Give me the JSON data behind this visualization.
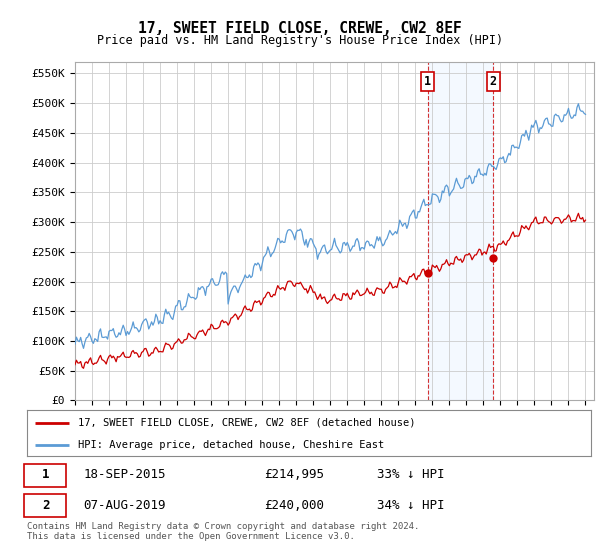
{
  "title": "17, SWEET FIELD CLOSE, CREWE, CW2 8EF",
  "subtitle": "Price paid vs. HM Land Registry's House Price Index (HPI)",
  "ylabel_ticks": [
    "£0",
    "£50K",
    "£100K",
    "£150K",
    "£200K",
    "£250K",
    "£300K",
    "£350K",
    "£400K",
    "£450K",
    "£500K",
    "£550K"
  ],
  "ytick_values": [
    0,
    50000,
    100000,
    150000,
    200000,
    250000,
    300000,
    350000,
    400000,
    450000,
    500000,
    550000
  ],
  "ylim": [
    0,
    570000
  ],
  "xlim_start": 1995.0,
  "xlim_end": 2025.5,
  "hpi_color": "#5b9bd5",
  "price_color": "#cc0000",
  "marker1_date": 2015.72,
  "marker1_price": 214995,
  "marker2_date": 2019.59,
  "marker2_price": 240000,
  "annotation1_label": "1",
  "annotation2_label": "2",
  "legend_line1": "17, SWEET FIELD CLOSE, CREWE, CW2 8EF (detached house)",
  "legend_line2": "HPI: Average price, detached house, Cheshire East",
  "table_row1_num": "1",
  "table_row1_date": "18-SEP-2015",
  "table_row1_price": "£214,995",
  "table_row1_info": "33% ↓ HPI",
  "table_row2_num": "2",
  "table_row2_date": "07-AUG-2019",
  "table_row2_price": "£240,000",
  "table_row2_info": "34% ↓ HPI",
  "footnote": "Contains HM Land Registry data © Crown copyright and database right 2024.\nThis data is licensed under the Open Government Licence v3.0.",
  "background_color": "#ffffff",
  "grid_color": "#cccccc",
  "plot_bg_color": "#ffffff",
  "shade_color": "#ddeeff"
}
